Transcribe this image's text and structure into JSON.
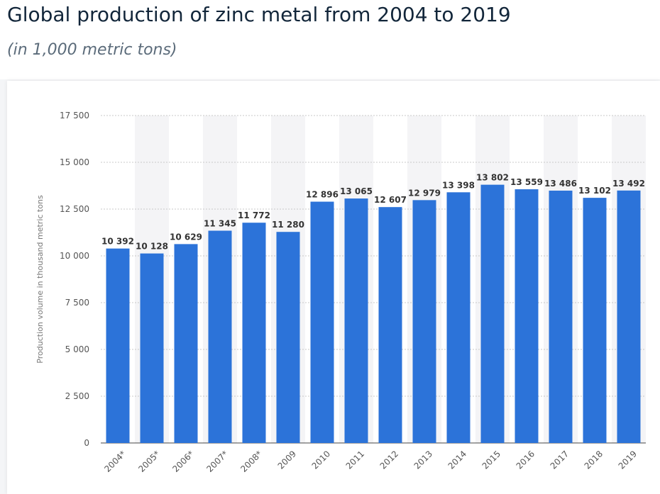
{
  "header": {
    "title": "Global production of zinc metal from 2004 to 2019",
    "subtitle": "(in 1,000 metric tons)"
  },
  "chart_data": {
    "type": "bar",
    "ylabel": "Production volume in thousand metric tons",
    "xlabel": "",
    "ylim": [
      0,
      17500
    ],
    "yticks": [
      0,
      2500,
      5000,
      7500,
      10000,
      12500,
      15000,
      17500
    ],
    "ytick_labels": [
      "0",
      "2 500",
      "5 000",
      "7 500",
      "10 000",
      "12 500",
      "15 000",
      "17 500"
    ],
    "categories": [
      "2004*",
      "2005*",
      "2006*",
      "2007*",
      "2008*",
      "2009",
      "2010",
      "2011",
      "2012",
      "2013",
      "2014",
      "2015",
      "2016",
      "2017",
      "2018",
      "2019"
    ],
    "values": [
      10392,
      10128,
      10629,
      11345,
      11772,
      11280,
      12896,
      13065,
      12607,
      12979,
      13398,
      13802,
      13559,
      13486,
      13102,
      13492
    ],
    "value_labels": [
      "10 392",
      "10 128",
      "10 629",
      "11 345",
      "11 772",
      "11 280",
      "12 896",
      "13 065",
      "12 607",
      "12 979",
      "13 398",
      "13 802",
      "13 559",
      "13 486",
      "13 102",
      "13 492"
    ],
    "grid": true,
    "bar_color": "#2c73d9",
    "band_color": "#f4f4f6"
  }
}
